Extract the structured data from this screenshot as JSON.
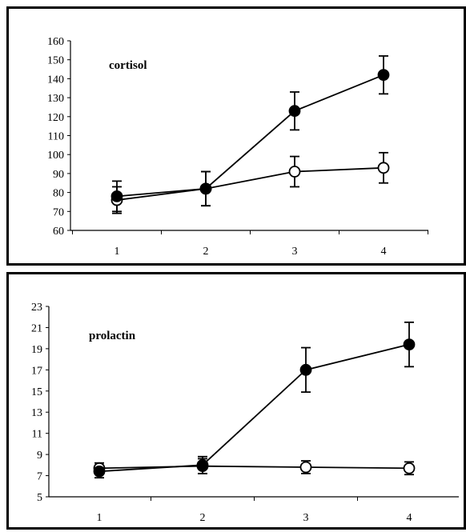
{
  "chart_data": [
    {
      "type": "line",
      "title": "cortisol",
      "xlabel": "",
      "ylabel": "",
      "x": [
        1,
        2,
        3,
        4
      ],
      "ylim": [
        60,
        160
      ],
      "yticks": [
        60,
        70,
        80,
        90,
        100,
        110,
        120,
        130,
        140,
        150,
        160
      ],
      "grid": false,
      "series": [
        {
          "marker": "filled-circle",
          "values": [
            78,
            82,
            123,
            142
          ],
          "errors": [
            8,
            9,
            10,
            10
          ]
        },
        {
          "marker": "open-circle",
          "values": [
            76,
            82,
            91,
            93
          ],
          "errors": [
            7,
            9,
            8,
            8
          ]
        }
      ]
    },
    {
      "type": "line",
      "title": "prolactin",
      "xlabel": "",
      "ylabel": "",
      "x": [
        1,
        2,
        3,
        4
      ],
      "ylim": [
        5,
        23
      ],
      "yticks": [
        5,
        7,
        9,
        11,
        13,
        15,
        17,
        19,
        21,
        23
      ],
      "grid": false,
      "series": [
        {
          "marker": "filled-circle",
          "values": [
            7.4,
            8.0,
            17.0,
            19.4
          ],
          "errors": [
            0.6,
            0.8,
            2.1,
            2.1
          ]
        },
        {
          "marker": "open-circle",
          "values": [
            7.7,
            7.9,
            7.8,
            7.7
          ],
          "errors": [
            0.5,
            0.7,
            0.6,
            0.6
          ]
        }
      ]
    }
  ]
}
